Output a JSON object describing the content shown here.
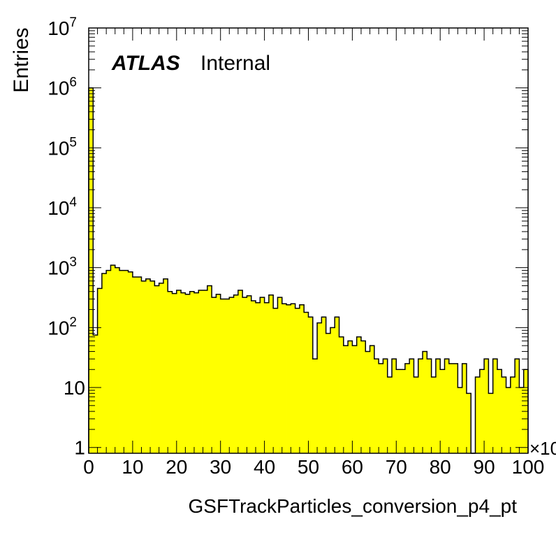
{
  "chart_data": {
    "type": "bar",
    "title": "",
    "xlabel": "GSFTrackParticles_conversion_p4_pt",
    "ylabel": "Entries",
    "x_multiplier_label": "×10",
    "annotation": {
      "bold": "ATLAS",
      "text": "Internal"
    },
    "xlim": [
      0,
      100
    ],
    "ylim": [
      0.8,
      10000000
    ],
    "y_scale": "log",
    "x_ticks": [
      "0",
      "10",
      "20",
      "30",
      "40",
      "50",
      "60",
      "70",
      "80",
      "90",
      "100"
    ],
    "y_ticks": [
      {
        "mantissa": "1",
        "exp": ""
      },
      {
        "mantissa": "10",
        "exp": ""
      },
      {
        "mantissa": "10",
        "exp": "2"
      },
      {
        "mantissa": "10",
        "exp": "3"
      },
      {
        "mantissa": "10",
        "exp": "4"
      },
      {
        "mantissa": "10",
        "exp": "5"
      },
      {
        "mantissa": "10",
        "exp": "6"
      },
      {
        "mantissa": "10",
        "exp": "7"
      }
    ],
    "fill_color": "#ffff00",
    "bin_width": 1,
    "values": [
      1000000,
      75,
      450,
      800,
      900,
      1100,
      1000,
      900,
      900,
      850,
      700,
      700,
      600,
      650,
      600,
      500,
      550,
      650,
      400,
      370,
      420,
      380,
      360,
      400,
      380,
      420,
      420,
      500,
      320,
      360,
      300,
      300,
      320,
      350,
      420,
      320,
      340,
      280,
      260,
      320,
      260,
      350,
      210,
      320,
      250,
      240,
      250,
      210,
      240,
      180,
      150,
      30,
      120,
      150,
      80,
      100,
      150,
      70,
      50,
      60,
      50,
      70,
      60,
      40,
      50,
      30,
      25,
      30,
      15,
      30,
      20,
      20,
      25,
      30,
      15,
      30,
      40,
      30,
      15,
      30,
      20,
      30,
      25,
      25,
      10,
      25,
      8,
      0.5,
      15,
      20,
      30,
      8,
      30,
      20,
      15,
      10,
      15,
      30,
      10,
      20
    ]
  }
}
